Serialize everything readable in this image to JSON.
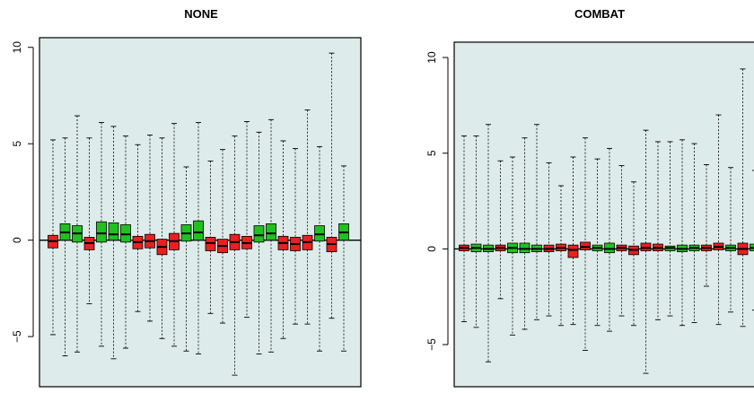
{
  "chart_data": [
    {
      "type": "boxplot",
      "title": "NONE",
      "xlabel": "",
      "ylabel": "",
      "ylim": [
        -7.6,
        10.5
      ],
      "yticks": [
        -5,
        0,
        5,
        10
      ],
      "ytick_labels": [
        "−5",
        "0",
        "5",
        "10"
      ],
      "colors": {
        "red": "#e8201f",
        "green": "#1fc11f",
        "panel": "#deebeb"
      },
      "boxes": [
        {
          "color": "red",
          "min": -4.9,
          "q1": -0.4,
          "median": -0.05,
          "q3": 0.25,
          "max": 5.2
        },
        {
          "color": "green",
          "min": -6.0,
          "q1": 0.0,
          "median": 0.4,
          "q3": 0.85,
          "max": 5.3
        },
        {
          "color": "green",
          "min": -5.8,
          "q1": -0.1,
          "median": 0.35,
          "q3": 0.75,
          "max": 6.45
        },
        {
          "color": "red",
          "min": -3.3,
          "q1": -0.5,
          "median": -0.15,
          "q3": 0.15,
          "max": 5.3
        },
        {
          "color": "green",
          "min": -5.5,
          "q1": -0.1,
          "median": 0.35,
          "q3": 0.95,
          "max": 6.1
        },
        {
          "color": "green",
          "min": -6.15,
          "q1": 0.0,
          "median": 0.3,
          "q3": 0.9,
          "max": 5.9
        },
        {
          "color": "green",
          "min": -5.6,
          "q1": -0.1,
          "median": 0.3,
          "q3": 0.8,
          "max": 5.4
        },
        {
          "color": "red",
          "min": -3.7,
          "q1": -0.45,
          "median": -0.1,
          "q3": 0.2,
          "max": 4.95
        },
        {
          "color": "red",
          "min": -4.2,
          "q1": -0.4,
          "median": -0.05,
          "q3": 0.3,
          "max": 5.45
        },
        {
          "color": "red",
          "min": -5.1,
          "q1": -0.75,
          "median": -0.35,
          "q3": 0.05,
          "max": 5.3
        },
        {
          "color": "red",
          "min": -5.5,
          "q1": -0.5,
          "median": -0.05,
          "q3": 0.35,
          "max": 6.05
        },
        {
          "color": "green",
          "min": -5.75,
          "q1": -0.05,
          "median": 0.35,
          "q3": 0.8,
          "max": 3.8
        },
        {
          "color": "green",
          "min": -5.9,
          "q1": 0.0,
          "median": 0.4,
          "q3": 1.0,
          "max": 6.1
        },
        {
          "color": "red",
          "min": -3.8,
          "q1": -0.55,
          "median": -0.15,
          "q3": 0.15,
          "max": 4.1
        },
        {
          "color": "red",
          "min": -4.3,
          "q1": -0.65,
          "median": -0.3,
          "q3": 0.05,
          "max": 4.7
        },
        {
          "color": "red",
          "min": -7.0,
          "q1": -0.5,
          "median": -0.1,
          "q3": 0.3,
          "max": 5.4
        },
        {
          "color": "red",
          "min": -4.0,
          "q1": -0.45,
          "median": -0.15,
          "q3": 0.2,
          "max": 6.15
        },
        {
          "color": "green",
          "min": -5.9,
          "q1": -0.1,
          "median": 0.25,
          "q3": 0.75,
          "max": 5.6
        },
        {
          "color": "green",
          "min": -5.8,
          "q1": 0.0,
          "median": 0.35,
          "q3": 0.85,
          "max": 6.25
        },
        {
          "color": "red",
          "min": -5.1,
          "q1": -0.5,
          "median": -0.15,
          "q3": 0.2,
          "max": 5.15
        },
        {
          "color": "red",
          "min": -4.35,
          "q1": -0.55,
          "median": -0.2,
          "q3": 0.15,
          "max": 4.75
        },
        {
          "color": "red",
          "min": -4.35,
          "q1": -0.5,
          "median": -0.1,
          "q3": 0.25,
          "max": 6.75
        },
        {
          "color": "green",
          "min": -5.75,
          "q1": -0.05,
          "median": 0.3,
          "q3": 0.75,
          "max": 4.85
        },
        {
          "color": "red",
          "min": -4.05,
          "q1": -0.6,
          "median": -0.2,
          "q3": 0.15,
          "max": 9.7
        },
        {
          "color": "green",
          "min": -5.75,
          "q1": 0.0,
          "median": 0.4,
          "q3": 0.85,
          "max": 3.85
        }
      ]
    },
    {
      "type": "boxplot",
      "title": "COMBAT",
      "xlabel": "",
      "ylabel": "",
      "ylim": [
        -7.2,
        10.8
      ],
      "yticks": [
        -5,
        0,
        5,
        10
      ],
      "ytick_labels": [
        "−5",
        "0",
        "5",
        "10"
      ],
      "colors": {
        "red": "#e8201f",
        "green": "#1fc11f",
        "panel": "#deebeb"
      },
      "boxes": [
        {
          "color": "red",
          "min": -3.8,
          "q1": -0.1,
          "median": 0.05,
          "q3": 0.2,
          "max": 5.9
        },
        {
          "color": "green",
          "min": -4.1,
          "q1": -0.15,
          "median": 0.05,
          "q3": 0.25,
          "max": 5.9
        },
        {
          "color": "green",
          "min": -5.9,
          "q1": -0.15,
          "median": 0.0,
          "q3": 0.2,
          "max": 6.5
        },
        {
          "color": "red",
          "min": -2.6,
          "q1": -0.1,
          "median": 0.05,
          "q3": 0.2,
          "max": 4.6
        },
        {
          "color": "green",
          "min": -4.5,
          "q1": -0.2,
          "median": 0.05,
          "q3": 0.3,
          "max": 4.8
        },
        {
          "color": "green",
          "min": -4.2,
          "q1": -0.2,
          "median": 0.0,
          "q3": 0.3,
          "max": 5.8
        },
        {
          "color": "green",
          "min": -3.7,
          "q1": -0.15,
          "median": 0.0,
          "q3": 0.2,
          "max": 6.5
        },
        {
          "color": "red",
          "min": -3.5,
          "q1": -0.15,
          "median": 0.0,
          "q3": 0.2,
          "max": 4.5
        },
        {
          "color": "red",
          "min": -4.0,
          "q1": -0.1,
          "median": 0.05,
          "q3": 0.25,
          "max": 3.3
        },
        {
          "color": "red",
          "min": -3.95,
          "q1": -0.45,
          "median": -0.05,
          "q3": 0.2,
          "max": 4.8
        },
        {
          "color": "red",
          "min": -5.3,
          "q1": -0.05,
          "median": 0.1,
          "q3": 0.35,
          "max": 5.8
        },
        {
          "color": "green",
          "min": -4.0,
          "q1": -0.1,
          "median": 0.05,
          "q3": 0.2,
          "max": 4.7
        },
        {
          "color": "green",
          "min": -4.3,
          "q1": -0.2,
          "median": 0.0,
          "q3": 0.3,
          "max": 5.25
        },
        {
          "color": "red",
          "min": -3.5,
          "q1": -0.1,
          "median": 0.05,
          "q3": 0.2,
          "max": 4.35
        },
        {
          "color": "red",
          "min": -4.0,
          "q1": -0.3,
          "median": -0.05,
          "q3": 0.15,
          "max": 3.5
        },
        {
          "color": "red",
          "min": -6.5,
          "q1": -0.1,
          "median": 0.05,
          "q3": 0.3,
          "max": 6.2
        },
        {
          "color": "red",
          "min": -3.7,
          "q1": -0.1,
          "median": 0.05,
          "q3": 0.25,
          "max": 5.6
        },
        {
          "color": "green",
          "min": -3.5,
          "q1": -0.1,
          "median": 0.05,
          "q3": 0.15,
          "max": 5.6
        },
        {
          "color": "green",
          "min": -4.0,
          "q1": -0.15,
          "median": 0.0,
          "q3": 0.2,
          "max": 5.7
        },
        {
          "color": "green",
          "min": -3.85,
          "q1": -0.1,
          "median": 0.05,
          "q3": 0.2,
          "max": 5.5
        },
        {
          "color": "red",
          "min": -1.95,
          "q1": -0.1,
          "median": 0.05,
          "q3": 0.2,
          "max": 4.4
        },
        {
          "color": "red",
          "min": -3.95,
          "q1": -0.05,
          "median": 0.1,
          "q3": 0.3,
          "max": 7.0
        },
        {
          "color": "green",
          "min": -3.3,
          "q1": -0.1,
          "median": 0.05,
          "q3": 0.2,
          "max": 4.25
        },
        {
          "color": "red",
          "min": -4.05,
          "q1": -0.3,
          "median": 0.0,
          "q3": 0.3,
          "max": 9.4
        },
        {
          "color": "green",
          "min": -3.2,
          "q1": -0.1,
          "median": 0.05,
          "q3": 0.25,
          "max": 4.1
        }
      ]
    }
  ]
}
